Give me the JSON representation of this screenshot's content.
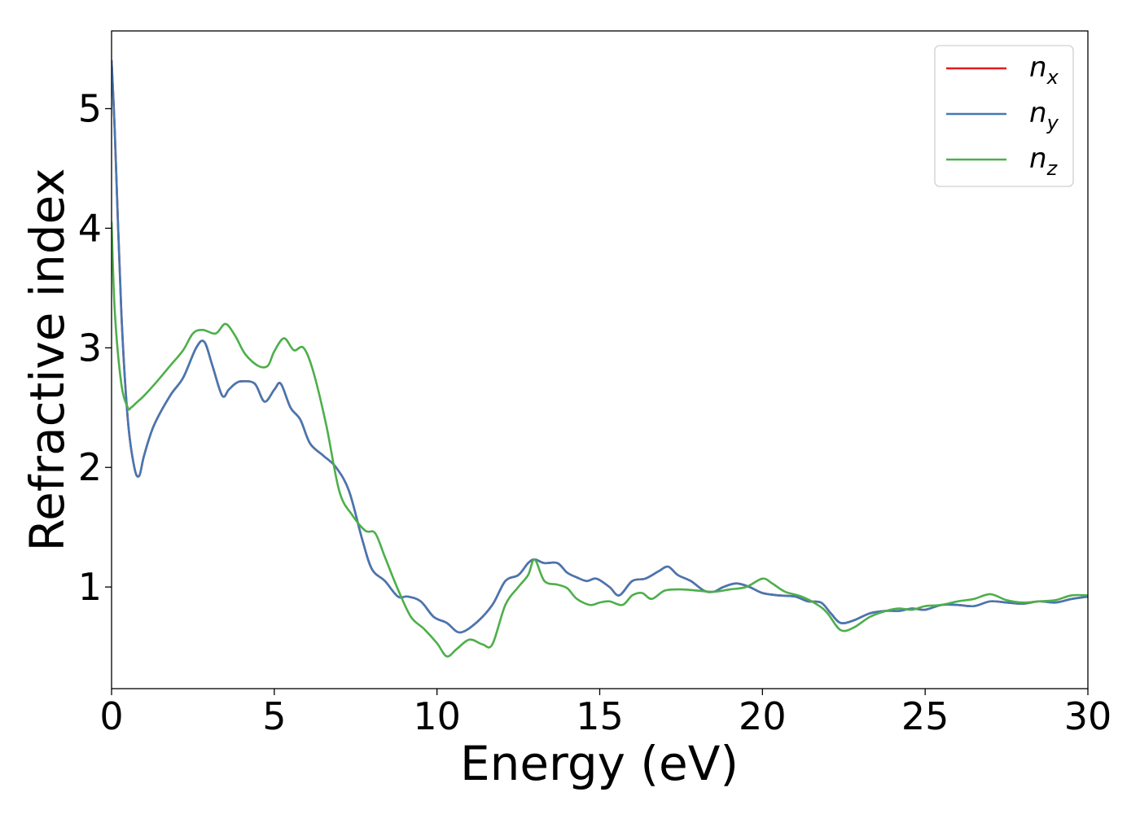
{
  "chart_data": {
    "type": "line",
    "xlabel": "Energy (eV)",
    "ylabel": "Refractive index",
    "xlim": [
      0,
      30
    ],
    "ylim": [
      0.15,
      5.65
    ],
    "xticks": [
      0,
      5,
      10,
      15,
      20,
      25,
      30
    ],
    "xtick_labels": [
      "0",
      "5",
      "10",
      "15",
      "20",
      "25",
      "30"
    ],
    "yticks": [
      1,
      2,
      3,
      4,
      5
    ],
    "ytick_labels": [
      "1",
      "2",
      "3",
      "4",
      "5"
    ],
    "grid": false,
    "legend_position": "top-right",
    "series": [
      {
        "name": "n_x",
        "label_base": "n",
        "label_sub": "x",
        "color": "#e41a1c",
        "x": [
          0,
          0.1,
          0.3,
          0.5,
          0.7,
          0.85,
          1.0,
          1.3,
          1.8,
          2.2,
          2.6,
          2.85,
          3.1,
          3.4,
          3.6,
          3.8,
          4.0,
          4.4,
          4.7,
          5.0,
          5.2,
          5.5,
          5.8,
          6.1,
          6.5,
          6.9,
          7.3,
          7.7,
          8.0,
          8.4,
          8.8,
          9.1,
          9.5,
          9.9,
          10.3,
          10.7,
          11.2,
          11.7,
          12.1,
          12.5,
          12.8,
          13.0,
          13.3,
          13.7,
          14.0,
          14.3,
          14.6,
          14.9,
          15.3,
          15.6,
          16.0,
          16.4,
          16.8,
          17.1,
          17.4,
          17.8,
          18.2,
          18.5,
          18.8,
          19.2,
          19.6,
          20.0,
          20.5,
          21.0,
          21.4,
          21.8,
          22.1,
          22.4,
          22.8,
          23.3,
          23.8,
          24.2,
          24.6,
          25.0,
          25.5,
          26.0,
          26.5,
          27.0,
          27.5,
          28.0,
          28.5,
          29.0,
          29.5,
          30.0
        ],
        "y": [
          5.4,
          4.8,
          3.3,
          2.4,
          2.0,
          1.93,
          2.1,
          2.35,
          2.6,
          2.75,
          3.0,
          3.05,
          2.85,
          2.6,
          2.65,
          2.7,
          2.72,
          2.7,
          2.55,
          2.65,
          2.7,
          2.5,
          2.4,
          2.2,
          2.1,
          2.0,
          1.8,
          1.4,
          1.15,
          1.05,
          0.92,
          0.92,
          0.88,
          0.75,
          0.7,
          0.62,
          0.7,
          0.85,
          1.05,
          1.1,
          1.2,
          1.23,
          1.2,
          1.2,
          1.12,
          1.08,
          1.05,
          1.07,
          1.0,
          0.93,
          1.05,
          1.07,
          1.13,
          1.17,
          1.1,
          1.05,
          0.97,
          0.96,
          1.0,
          1.03,
          1.0,
          0.95,
          0.93,
          0.92,
          0.88,
          0.87,
          0.78,
          0.7,
          0.72,
          0.78,
          0.8,
          0.8,
          0.82,
          0.81,
          0.85,
          0.85,
          0.84,
          0.88,
          0.87,
          0.86,
          0.88,
          0.87,
          0.9,
          0.92
        ]
      },
      {
        "name": "n_y",
        "label_base": "n",
        "label_sub": "y",
        "color": "#4478b3",
        "x": [
          0,
          0.1,
          0.3,
          0.5,
          0.7,
          0.85,
          1.0,
          1.3,
          1.8,
          2.2,
          2.6,
          2.85,
          3.1,
          3.4,
          3.6,
          3.8,
          4.0,
          4.4,
          4.7,
          5.0,
          5.2,
          5.5,
          5.8,
          6.1,
          6.5,
          6.9,
          7.3,
          7.7,
          8.0,
          8.4,
          8.8,
          9.1,
          9.5,
          9.9,
          10.3,
          10.7,
          11.2,
          11.7,
          12.1,
          12.5,
          12.8,
          13.0,
          13.3,
          13.7,
          14.0,
          14.3,
          14.6,
          14.9,
          15.3,
          15.6,
          16.0,
          16.4,
          16.8,
          17.1,
          17.4,
          17.8,
          18.2,
          18.5,
          18.8,
          19.2,
          19.6,
          20.0,
          20.5,
          21.0,
          21.4,
          21.8,
          22.1,
          22.4,
          22.8,
          23.3,
          23.8,
          24.2,
          24.6,
          25.0,
          25.5,
          26.0,
          26.5,
          27.0,
          27.5,
          28.0,
          28.5,
          29.0,
          29.5,
          30.0
        ],
        "y": [
          5.4,
          4.8,
          3.3,
          2.4,
          2.0,
          1.93,
          2.1,
          2.35,
          2.6,
          2.75,
          3.0,
          3.05,
          2.85,
          2.6,
          2.65,
          2.7,
          2.72,
          2.7,
          2.55,
          2.65,
          2.7,
          2.5,
          2.4,
          2.2,
          2.1,
          2.0,
          1.8,
          1.4,
          1.15,
          1.05,
          0.92,
          0.92,
          0.88,
          0.75,
          0.7,
          0.62,
          0.7,
          0.85,
          1.05,
          1.1,
          1.2,
          1.23,
          1.2,
          1.2,
          1.12,
          1.08,
          1.05,
          1.07,
          1.0,
          0.93,
          1.05,
          1.07,
          1.13,
          1.17,
          1.1,
          1.05,
          0.97,
          0.96,
          1.0,
          1.03,
          1.0,
          0.95,
          0.93,
          0.92,
          0.88,
          0.87,
          0.78,
          0.7,
          0.72,
          0.78,
          0.8,
          0.8,
          0.82,
          0.81,
          0.85,
          0.85,
          0.84,
          0.88,
          0.87,
          0.86,
          0.88,
          0.87,
          0.9,
          0.92
        ]
      },
      {
        "name": "n_z",
        "label_base": "n",
        "label_sub": "z",
        "color": "#4daf4a",
        "x": [
          0,
          0.1,
          0.3,
          0.5,
          0.6,
          0.8,
          1.0,
          1.4,
          1.8,
          2.2,
          2.5,
          2.8,
          3.2,
          3.5,
          3.8,
          4.1,
          4.5,
          4.8,
          5.0,
          5.3,
          5.6,
          5.9,
          6.2,
          6.6,
          7.0,
          7.4,
          7.8,
          8.1,
          8.4,
          8.8,
          9.2,
          9.6,
          10.0,
          10.3,
          10.6,
          11.0,
          11.4,
          11.7,
          12.1,
          12.5,
          12.8,
          13.0,
          13.3,
          13.7,
          14.0,
          14.3,
          14.7,
          15.0,
          15.3,
          15.7,
          16.0,
          16.3,
          16.6,
          17.0,
          17.5,
          18.0,
          18.5,
          19.0,
          19.5,
          20.0,
          20.3,
          20.7,
          21.2,
          21.7,
          22.0,
          22.4,
          22.8,
          23.3,
          23.8,
          24.2,
          24.6,
          25.0,
          25.5,
          26.0,
          26.5,
          27.0,
          27.5,
          28.0,
          28.5,
          29.0,
          29.5,
          30.0
        ],
        "y": [
          4.05,
          3.3,
          2.7,
          2.5,
          2.5,
          2.55,
          2.6,
          2.72,
          2.85,
          2.98,
          3.12,
          3.15,
          3.12,
          3.2,
          3.1,
          2.95,
          2.85,
          2.85,
          2.97,
          3.08,
          2.98,
          3.0,
          2.8,
          2.35,
          1.8,
          1.6,
          1.47,
          1.45,
          1.25,
          0.98,
          0.75,
          0.65,
          0.53,
          0.42,
          0.48,
          0.56,
          0.52,
          0.52,
          0.85,
          1.0,
          1.1,
          1.23,
          1.05,
          1.02,
          0.99,
          0.9,
          0.85,
          0.87,
          0.88,
          0.85,
          0.93,
          0.95,
          0.9,
          0.97,
          0.98,
          0.97,
          0.96,
          0.98,
          1.0,
          1.07,
          1.03,
          0.96,
          0.92,
          0.85,
          0.78,
          0.64,
          0.66,
          0.75,
          0.8,
          0.82,
          0.81,
          0.84,
          0.85,
          0.88,
          0.9,
          0.94,
          0.89,
          0.87,
          0.88,
          0.89,
          0.93,
          0.93
        ]
      }
    ]
  }
}
